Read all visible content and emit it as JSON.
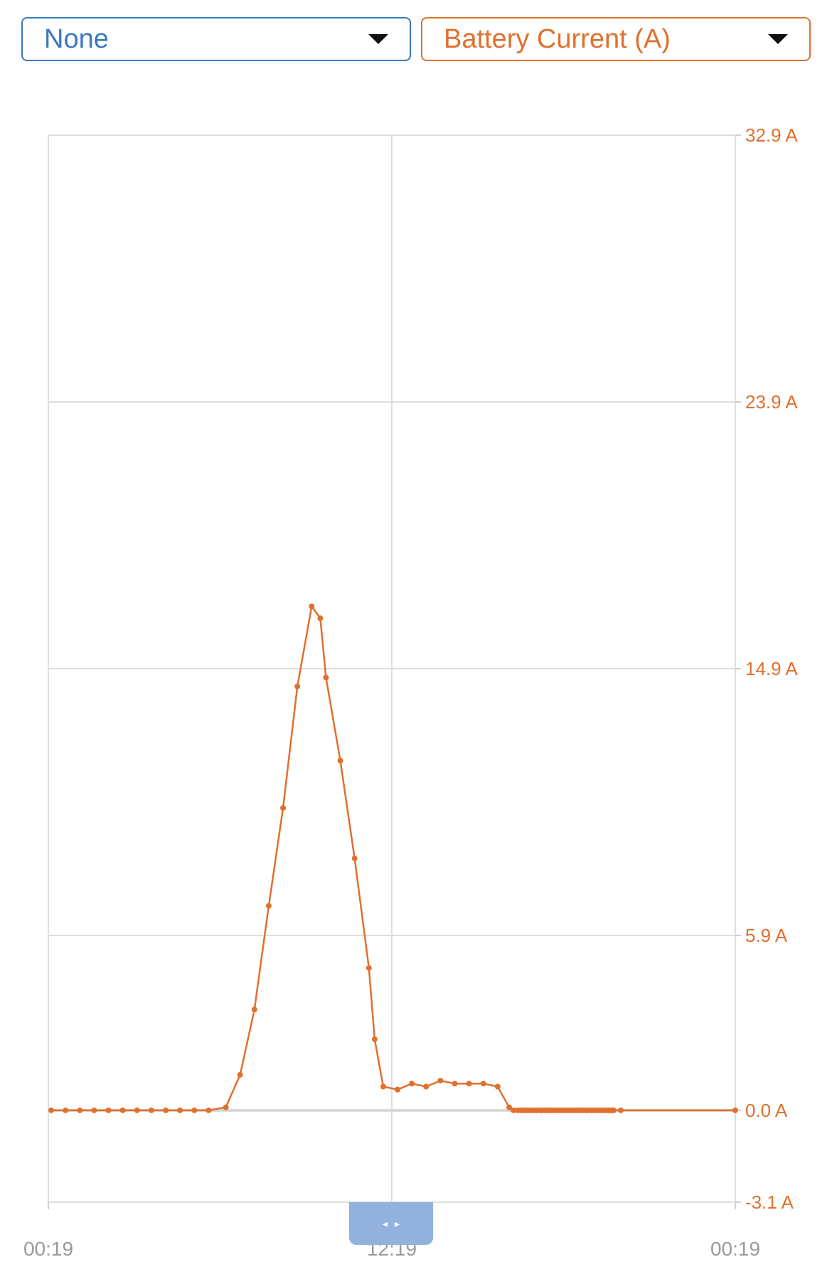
{
  "selectors": {
    "left": {
      "value": "None",
      "color": "#3a78c0"
    },
    "right": {
      "value": "Battery Current (A)",
      "color": "#e0702e"
    }
  },
  "scrubber": {
    "left_icon": "chevron-left-icon",
    "right_icon": "chevron-right-icon",
    "left_glyph": "◂",
    "right_glyph": "▸"
  },
  "chart_data": {
    "type": "line",
    "title": "",
    "xlabel": "",
    "ylabel": "",
    "x_tick_labels": [
      "00:19",
      "12:19",
      "00:19"
    ],
    "x_range_hours": [
      0,
      24
    ],
    "y_ticks": [
      32.9,
      23.9,
      14.9,
      5.9,
      0.0,
      -3.1
    ],
    "y_tick_labels": [
      "32.9 A",
      "23.9 A",
      "14.9 A",
      "5.9 A",
      "0.0 A",
      "-3.1 A"
    ],
    "ylim": [
      -3.1,
      32.9
    ],
    "y_axis_side": "right",
    "grid": true,
    "series": [
      {
        "name": "Battery Current (A)",
        "color": "#e0702e",
        "x_hours": [
          0.1,
          0.6,
          1.1,
          1.6,
          2.1,
          2.6,
          3.1,
          3.6,
          4.1,
          4.6,
          5.1,
          5.6,
          6.2,
          6.7,
          7.2,
          7.7,
          8.2,
          8.7,
          9.2,
          9.5,
          9.7,
          10.2,
          10.7,
          11.2,
          11.4,
          11.7,
          12.2,
          12.7,
          13.2,
          13.7,
          14.2,
          14.7,
          15.2,
          15.7,
          16.1,
          16.25,
          16.4,
          16.5,
          16.55,
          16.65,
          16.7,
          16.8,
          16.9,
          17.0,
          17.05,
          17.1,
          17.2,
          17.25,
          17.35,
          17.4,
          17.45,
          17.55,
          17.6,
          17.7,
          17.8,
          17.85,
          17.95,
          18.0,
          18.1,
          18.2,
          18.3,
          18.4,
          18.45,
          18.5,
          18.6,
          18.7,
          18.8,
          18.85,
          18.95,
          19.0,
          19.1,
          19.2,
          19.25,
          19.3,
          19.4,
          19.5,
          19.55,
          19.6,
          19.65,
          19.7,
          19.75,
          20.0,
          24.0
        ],
        "values": [
          0.0,
          0.0,
          0.0,
          0.0,
          0.0,
          0.0,
          0.0,
          0.0,
          0.0,
          0.0,
          0.0,
          0.0,
          0.1,
          1.2,
          3.4,
          6.9,
          10.2,
          14.3,
          17.0,
          16.6,
          14.6,
          11.8,
          8.5,
          4.8,
          2.4,
          0.8,
          0.7,
          0.9,
          0.8,
          1.0,
          0.9,
          0.9,
          0.9,
          0.8,
          0.1,
          0.0,
          0.0,
          0.0,
          0.0,
          0.0,
          0.0,
          0.0,
          0.0,
          0.0,
          0.0,
          0.0,
          0.0,
          0.0,
          0.0,
          0.0,
          0.0,
          0.0,
          0.0,
          0.0,
          0.0,
          0.0,
          0.0,
          0.0,
          0.0,
          0.0,
          0.0,
          0.0,
          0.0,
          0.0,
          0.0,
          0.0,
          0.0,
          0.0,
          0.0,
          0.0,
          0.0,
          0.0,
          0.0,
          0.0,
          0.0,
          0.0,
          0.0,
          0.0,
          0.0,
          0.0,
          0.0,
          0.0,
          0.0
        ]
      }
    ]
  }
}
